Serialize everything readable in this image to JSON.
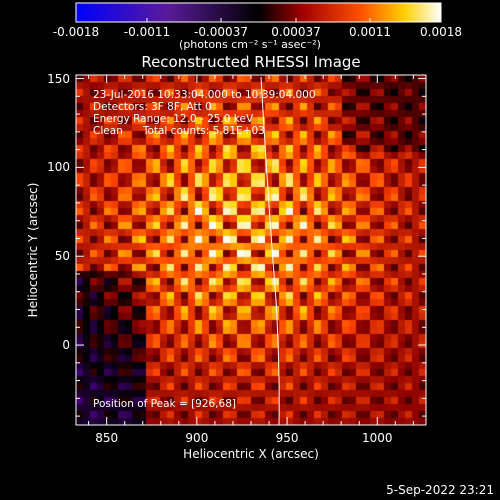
{
  "colorbar": {
    "tick_labels": [
      "-0.0018",
      "-0.0011",
      "-0.00037",
      "0.00037",
      "0.0011",
      "0.0018"
    ],
    "tick_values": [
      -0.0018,
      -0.0011,
      -0.00037,
      0.00037,
      0.0011,
      0.0018
    ],
    "range": [
      -0.0018,
      0.0018
    ],
    "unit_label": "(photons cm⁻² s⁻¹ asec⁻²)"
  },
  "chart_data": {
    "type": "heatmap",
    "title": "Reconstructed RHESSI Image",
    "xlabel": "Heliocentric X (arcsec)",
    "ylabel": "Heliocentric Y (arcsec)",
    "xlim": [
      833,
      1027
    ],
    "ylim": [
      -45,
      152
    ],
    "x_ticks": [
      850,
      900,
      950,
      1000
    ],
    "y_ticks": [
      0,
      50,
      100,
      150
    ],
    "peak_position": [
      926,
      68
    ],
    "annotations": [
      "23-Jul-2016 10:33:04.000 to 10:39:04.000",
      "Detectors: 3F 8F, Att 0",
      "Energy Range: 12.0 - 25.0 keV",
      "Clean      Total counts: 5.81E+03"
    ],
    "peak_label": "Position of Peak = [926,68]",
    "colormap": [
      "#0000ff",
      "#4b0082",
      "#000000",
      "#8b0000",
      "#ff4500",
      "#ffd700",
      "#ffffff"
    ]
  },
  "timestamp": "5-Sep-2022 23:21"
}
